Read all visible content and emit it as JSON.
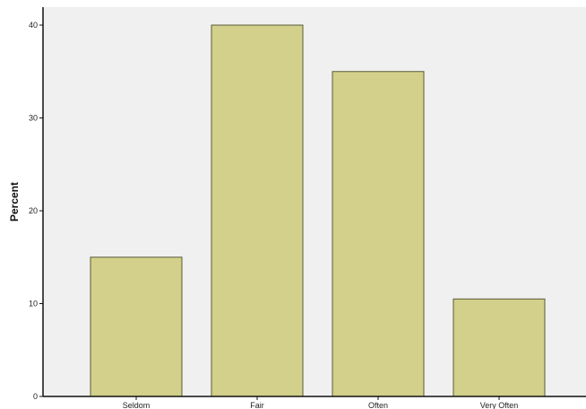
{
  "colors": {
    "plot_background": "#f0f0f0",
    "bar_fill": "#d2d08a",
    "bar_stroke": "#5a5a38",
    "axis": "#111111"
  },
  "chart_data": {
    "type": "bar",
    "title": "",
    "xlabel": "",
    "ylabel": "Percent",
    "categories": [
      "Seldom",
      "Fair",
      "Often",
      "Very Often"
    ],
    "values": [
      15,
      40,
      35,
      10.5
    ],
    "ylim": [
      0,
      40
    ],
    "yticks": [
      0,
      10,
      20,
      30,
      40
    ],
    "grid": false,
    "legend": "none"
  }
}
